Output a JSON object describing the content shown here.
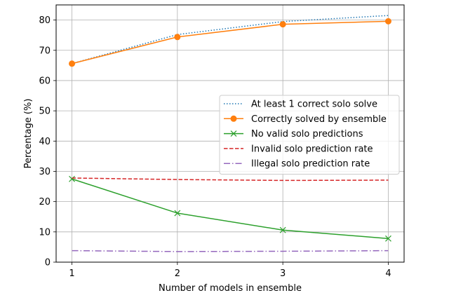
{
  "chart_data": {
    "type": "line",
    "xlabel": "Number of models in ensemble",
    "ylabel": "Percentage (%)",
    "x": [
      1,
      2,
      3,
      4
    ],
    "xlim": [
      0.85,
      4.15
    ],
    "ylim": [
      0,
      85
    ],
    "xticks": [
      "1",
      "2",
      "3",
      "4"
    ],
    "yticks": [
      "0",
      "10",
      "20",
      "30",
      "40",
      "50",
      "60",
      "70",
      "80"
    ],
    "grid": true,
    "legend_position": "center-right",
    "series": [
      {
        "name": "At least 1 correct solo solve",
        "values": [
          65.6,
          75.2,
          79.5,
          81.5
        ],
        "color": "#1f77b4",
        "style": "dotted",
        "marker": "none"
      },
      {
        "name": "Correctly solved by ensemble",
        "values": [
          65.6,
          74.4,
          78.6,
          79.6
        ],
        "color": "#ff7f0e",
        "style": "solid",
        "marker": "circle"
      },
      {
        "name": "No valid solo predictions",
        "values": [
          27.5,
          16.2,
          10.6,
          7.8
        ],
        "color": "#2ca02c",
        "style": "solid",
        "marker": "x"
      },
      {
        "name": "Invalid solo prediction rate",
        "values": [
          27.8,
          27.3,
          27.0,
          27.1
        ],
        "color": "#d62728",
        "style": "dashed",
        "marker": "none"
      },
      {
        "name": "Illegal solo prediction rate",
        "values": [
          3.8,
          3.5,
          3.6,
          3.8
        ],
        "color": "#9467bd",
        "style": "dashdot",
        "marker": "none"
      }
    ]
  }
}
